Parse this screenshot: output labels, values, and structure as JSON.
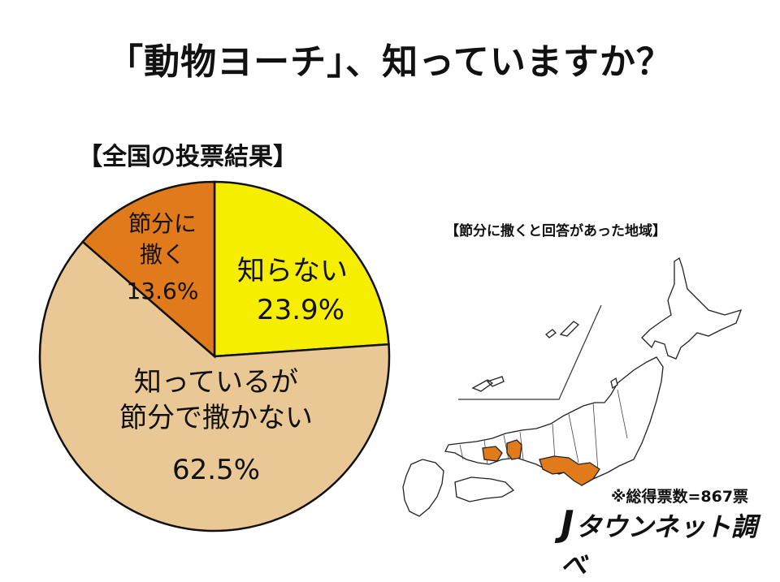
{
  "header": {
    "title": "「動物ヨーチ」、知っていますか？",
    "subtitle": "【全国の投票結果】"
  },
  "map": {
    "title": "【節分に撒くと回答があった地域】",
    "highlight_color": "#e07a1a"
  },
  "footer": {
    "votes_note": "※総得票数=867票",
    "credit_j": "J",
    "credit_text": "タウンネット調べ"
  },
  "chart_data": {
    "type": "pie",
    "title": "",
    "slices": [
      {
        "lines": [
          "知らない"
        ],
        "value": 23.9,
        "value_label": "23.9%",
        "color": "#f5ee00"
      },
      {
        "lines": [
          "知っているが",
          "節分で撒かない"
        ],
        "value": 62.5,
        "value_label": "62.5%",
        "color": "#e9c896"
      },
      {
        "lines": [
          "節分に",
          "撒く"
        ],
        "value": 13.6,
        "value_label": "13.6%",
        "color": "#e07a1a"
      }
    ]
  }
}
